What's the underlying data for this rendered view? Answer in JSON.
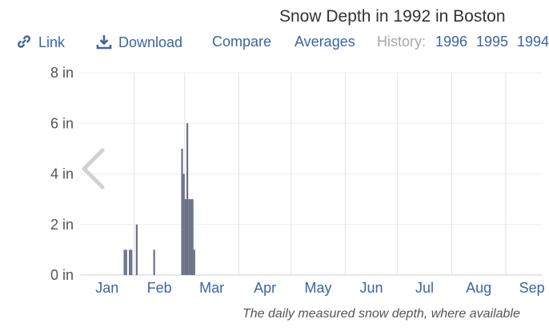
{
  "chart_data": {
    "type": "bar",
    "title": "Snow Depth in 1992 in Boston",
    "y_unit": "in",
    "ylim": [
      0,
      8
    ],
    "y_ticks": [
      0,
      2,
      4,
      6,
      8
    ],
    "y_tick_labels": [
      "0 in",
      "2 in",
      "4 in",
      "6 in",
      "8 in"
    ],
    "month_labels": [
      "Jan",
      "Feb",
      "Mar",
      "Apr",
      "May",
      "Jun",
      "Jul",
      "Aug",
      "Sep"
    ],
    "grid": true,
    "series": [
      {
        "x": [
          "1992-01-26",
          "1992-01-27",
          "1992-01-29",
          "1992-01-30",
          "1992-02-02",
          "1992-02-12",
          "1992-02-28",
          "1992-02-29",
          "1992-03-01",
          "1992-03-02",
          "1992-03-03",
          "1992-03-04",
          "1992-03-05",
          "1992-03-06"
        ],
        "values": [
          1,
          1,
          1,
          1,
          2,
          1,
          5,
          4,
          3,
          6,
          3,
          3,
          3,
          1
        ]
      }
    ],
    "bar_color": "#6a7086"
  },
  "toolbar": {
    "link_label": "Link",
    "download_label": "Download",
    "compare_label": "Compare",
    "averages_label": "Averages",
    "history_label": "History:",
    "history_years": [
      "1996",
      "1995",
      "1994"
    ]
  },
  "caption": "The daily measured snow depth, where available"
}
